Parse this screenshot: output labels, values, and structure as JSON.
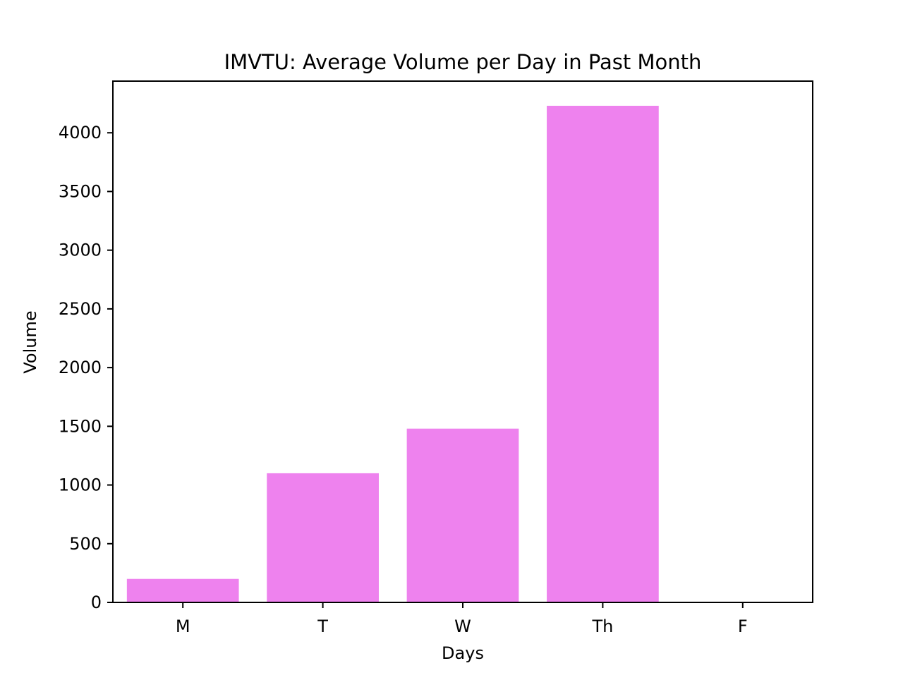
{
  "chart_data": {
    "type": "bar",
    "title": "IMVTU: Average Volume per Day in Past Month",
    "xlabel": "Days",
    "ylabel": "Volume",
    "categories": [
      "M",
      "T",
      "W",
      "Th",
      "F"
    ],
    "values": [
      200,
      1100,
      1480,
      4230,
      0
    ],
    "ylim": [
      0,
      4440
    ],
    "yticks": [
      0,
      500,
      1000,
      1500,
      2000,
      2500,
      3000,
      3500,
      4000
    ],
    "grid": false,
    "bar_color": "#ee82ee"
  }
}
